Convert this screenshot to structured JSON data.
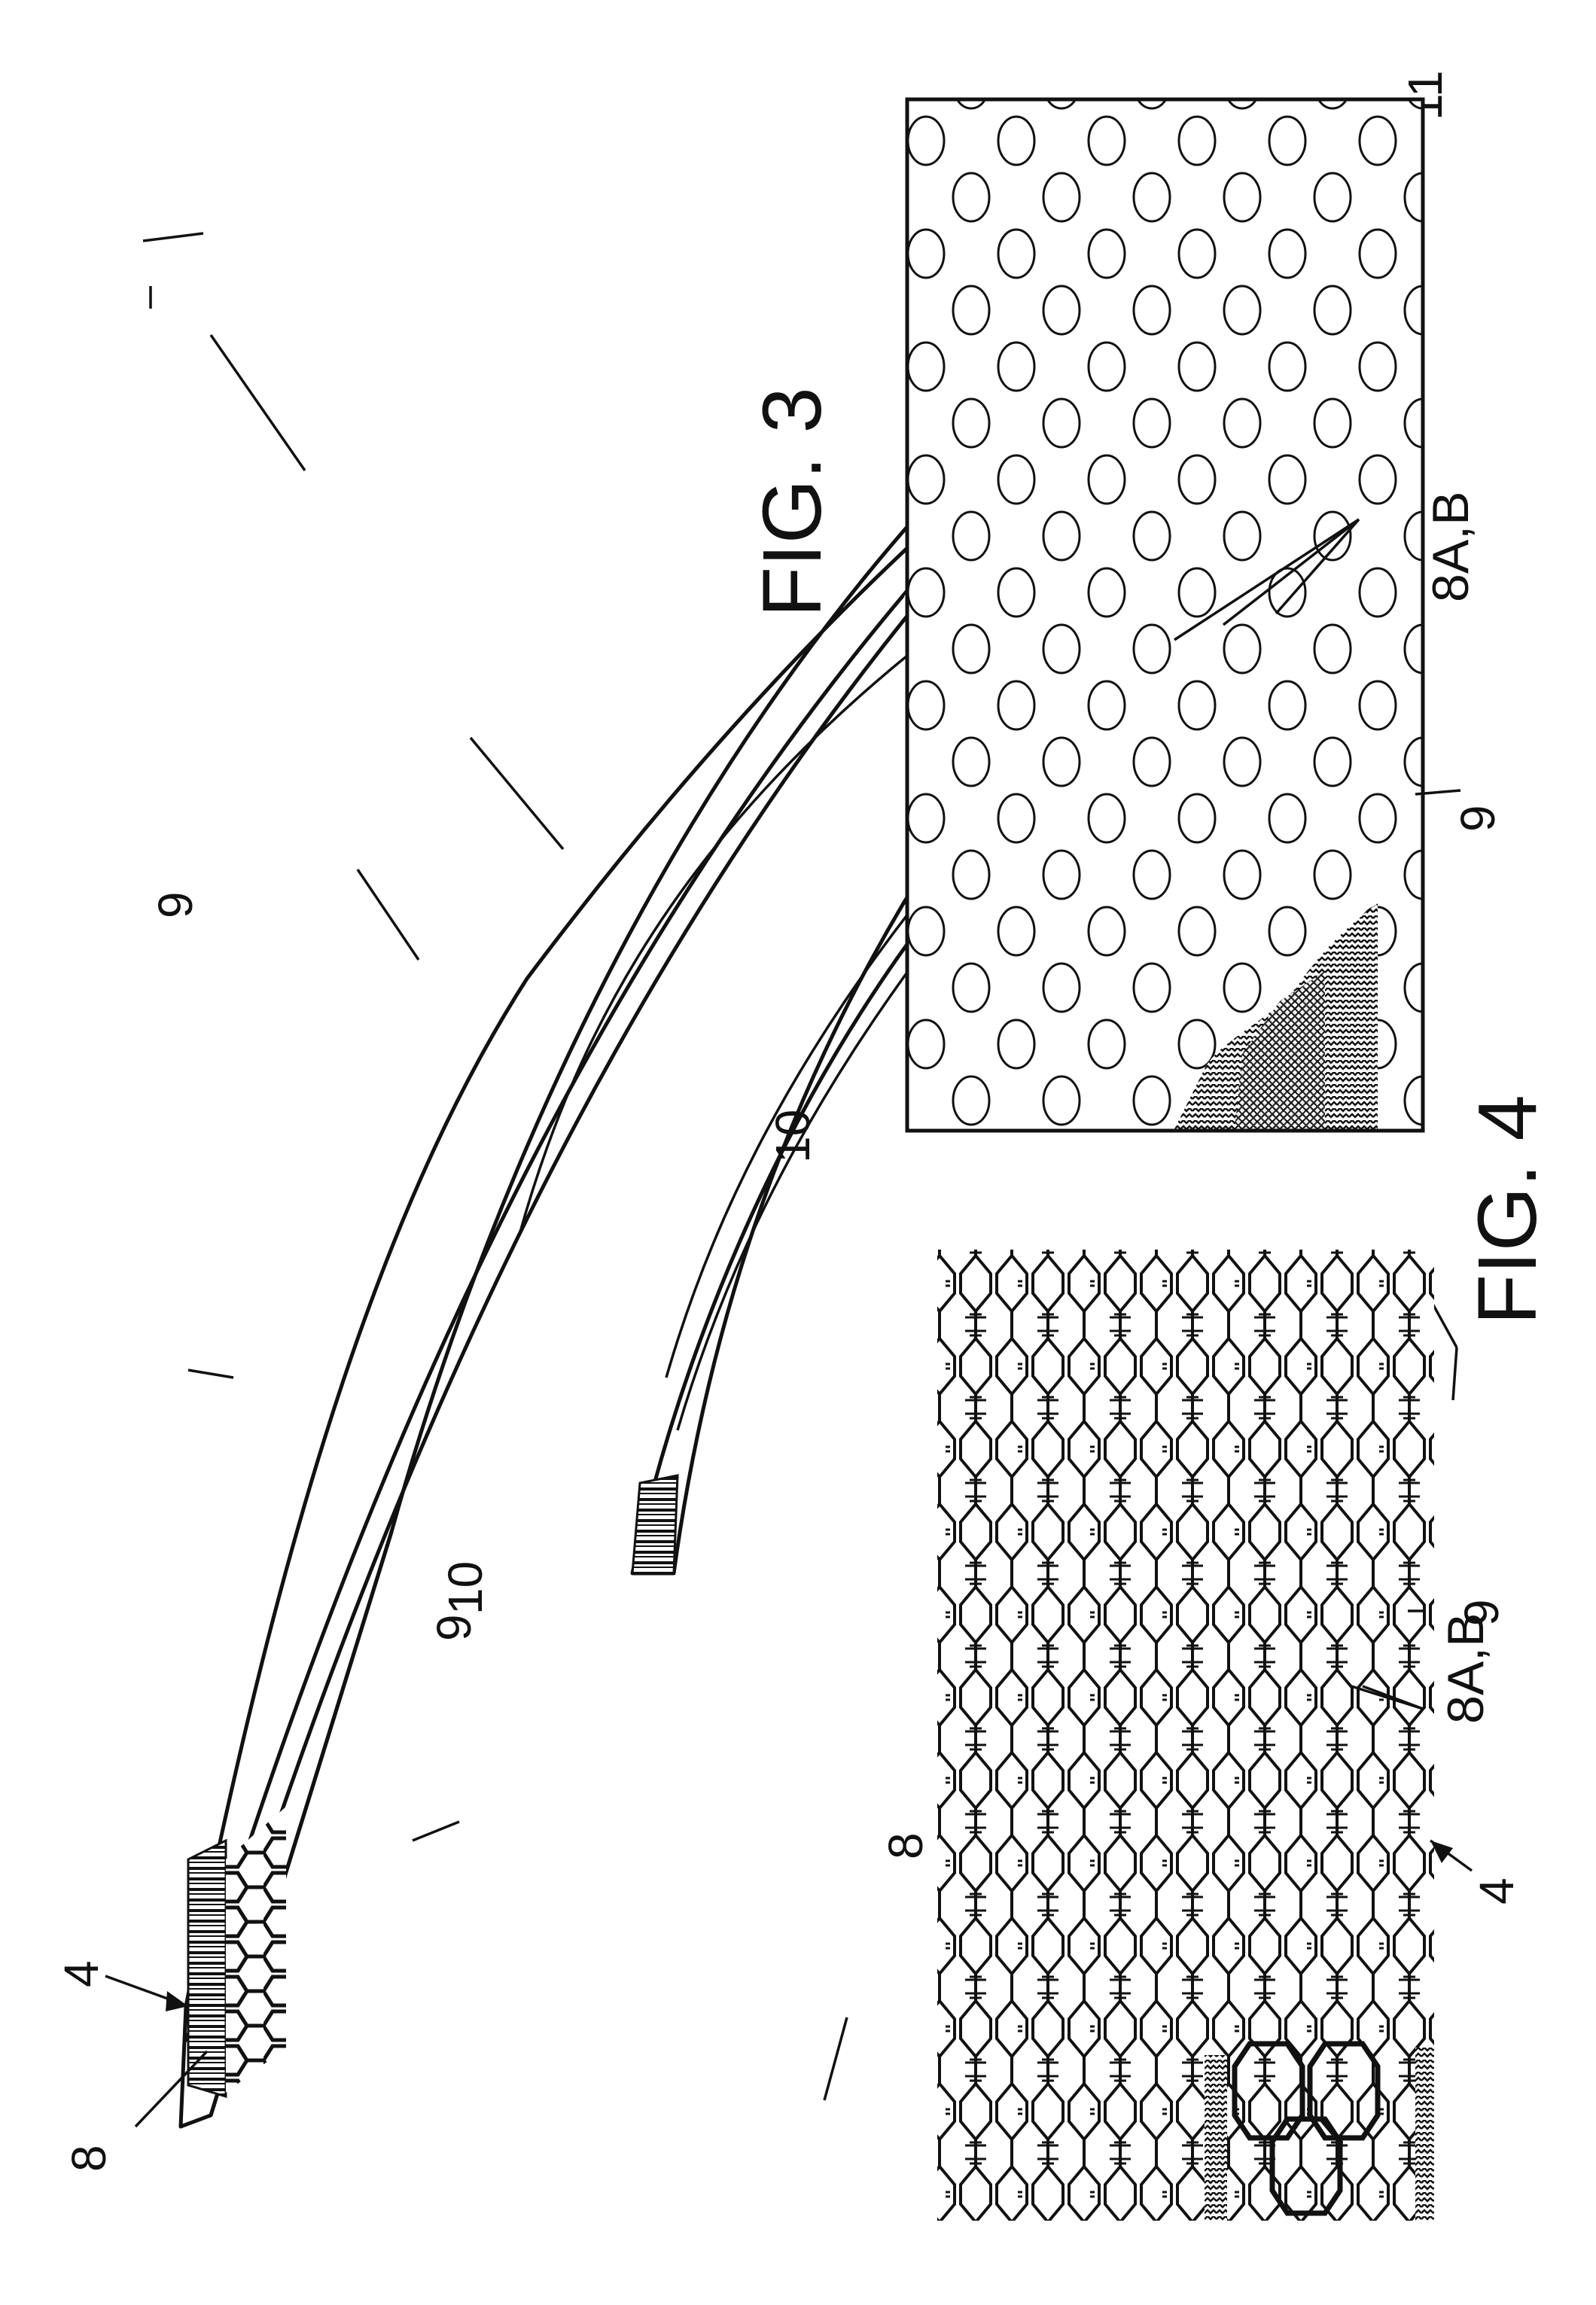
{
  "figures": {
    "fig3": {
      "caption": "FIG. 3",
      "labels": {
        "ref_4": "4",
        "ref_8_left": "8",
        "ref_8_right": "8",
        "ref_9_top": "9",
        "ref_9_lower": "9",
        "ref_10_left": "10",
        "ref_10_right": "10",
        "ref_11": "11"
      }
    },
    "fig4": {
      "caption": "FIG. 4",
      "left_panel": {
        "ref_8AB": "8A,B",
        "ref_9": "9",
        "ref_4": "4"
      },
      "right_panel": {
        "ref_8AB": "8A,B",
        "ref_9": "9"
      }
    }
  },
  "colors": {
    "ink": "#111111",
    "paper": "#ffffff"
  }
}
